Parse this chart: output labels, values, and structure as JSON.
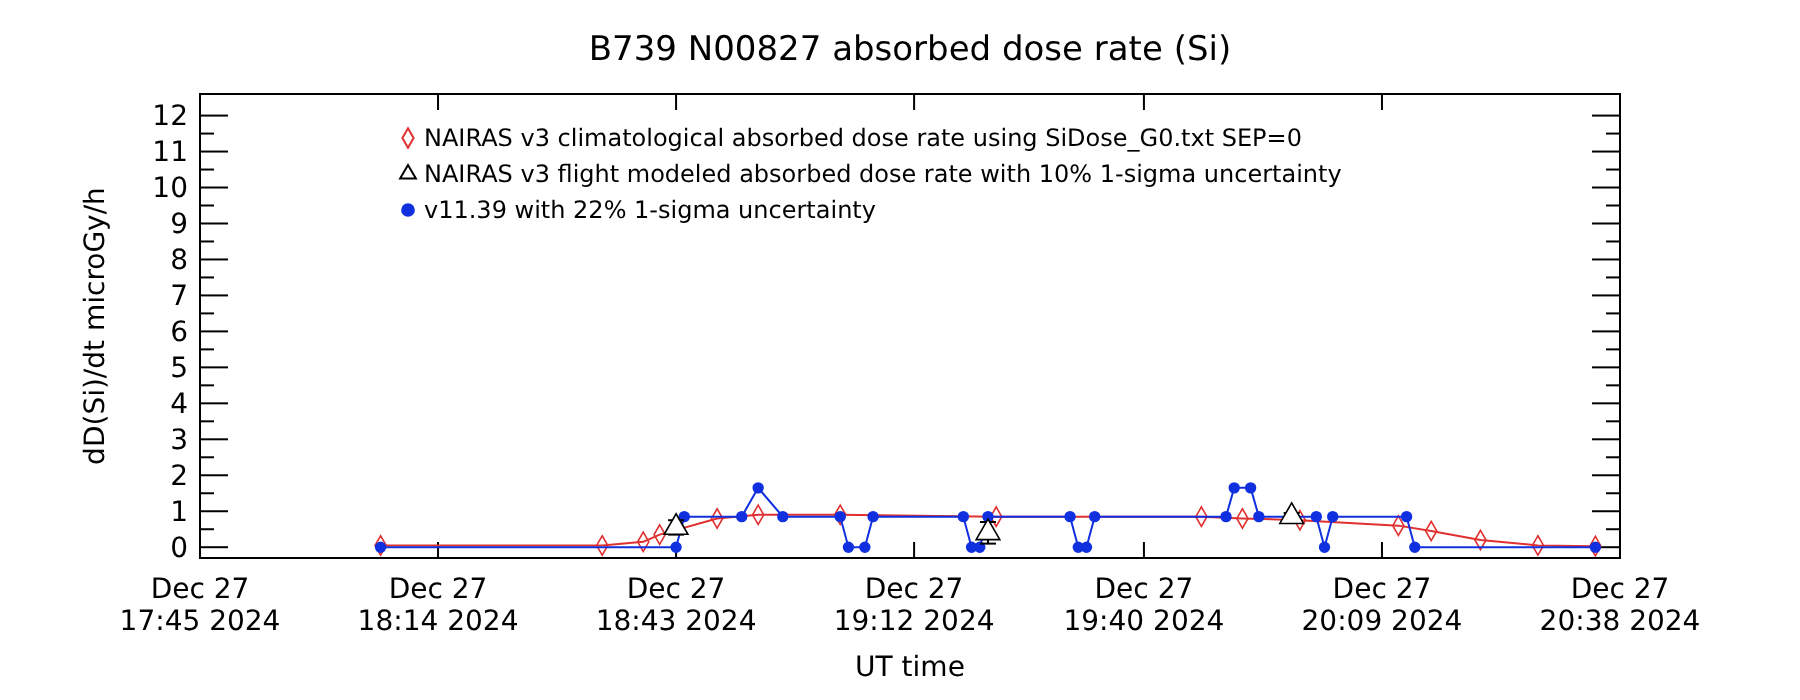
{
  "chart_data": {
    "type": "line",
    "title": "B739 N00827 absorbed dose rate (Si)",
    "xlabel": "UT time",
    "ylabel": "dD(Si)/dt microGy/h",
    "xlim": [
      "2024-12-27T17:45",
      "2024-12-27T20:38"
    ],
    "xticks": [
      {
        "value": "2024-12-27T17:45",
        "label": "Dec 27\n17:45 2024"
      },
      {
        "value": "2024-12-27T18:14",
        "label": "Dec 27\n18:14 2024"
      },
      {
        "value": "2024-12-27T18:43",
        "label": "Dec 27\n18:43 2024"
      },
      {
        "value": "2024-12-27T19:12",
        "label": "Dec 27\n19:12 2024"
      },
      {
        "value": "2024-12-27T19:40",
        "label": "Dec 27\n19:40 2024"
      },
      {
        "value": "2024-12-27T20:09",
        "label": "Dec 27\n20:09 2024"
      },
      {
        "value": "2024-12-27T20:38",
        "label": "Dec 27\n20:38 2024"
      }
    ],
    "ylim": [
      -0.3,
      12.6
    ],
    "yticks": [
      0,
      {
        "value": 0.5,
        "label": null
      },
      1,
      {
        "value": 1.5,
        "label": null
      },
      2,
      {
        "value": 2.5,
        "label": null
      },
      3,
      {
        "value": 3.5,
        "label": null
      },
      4,
      {
        "value": 4.5,
        "label": null
      },
      5,
      {
        "value": 5.5,
        "label": null
      },
      6,
      {
        "value": 6.5,
        "label": null
      },
      7,
      {
        "value": 7.5,
        "label": null
      },
      8,
      {
        "value": 8.5,
        "label": null
      },
      9,
      {
        "value": 9.5,
        "label": null
      },
      10,
      {
        "value": 10.5,
        "label": null
      },
      11,
      {
        "value": 11.5,
        "label": null
      },
      12
    ],
    "grid": false,
    "legend": "top",
    "line_style": "solid",
    "series": [
      {
        "name": "NAIRAS v3 climatological absorbed dose rate using SiDose_G0.txt SEP=0",
        "color": "#e03030",
        "marker": "diamond",
        "x": [
          "2024-12-27T18:07",
          "2024-12-27T18:34",
          "2024-12-27T18:39",
          "2024-12-27T18:41",
          "2024-12-27T18:48",
          "2024-12-27T18:53",
          "2024-12-27T19:03",
          "2024-12-27T19:22",
          "2024-12-27T19:47",
          "2024-12-27T19:52",
          "2024-12-27T19:59",
          "2024-12-27T20:11",
          "2024-12-27T20:15",
          "2024-12-27T20:21",
          "2024-12-27T20:28",
          "2024-12-27T20:35"
        ],
        "values": [
          0.05,
          0.05,
          0.15,
          0.35,
          0.8,
          0.9,
          0.9,
          0.85,
          0.85,
          0.8,
          0.75,
          0.6,
          0.45,
          0.2,
          0.05,
          0.03
        ]
      },
      {
        "name": "NAIRAS v3 flight modeled absorbed dose rate with 10% 1-sigma uncertainty",
        "color": "#000000",
        "type": "scatter",
        "marker": "triangle",
        "x": [
          "2024-12-27T18:43",
          "2024-12-27T19:21",
          "2024-12-27T19:58"
        ],
        "values": [
          0.55,
          0.4,
          0.85
        ],
        "errors": [
          0.2,
          0.3,
          0.1
        ]
      },
      {
        "name": "v11.39 with 22% 1-sigma uncertainty",
        "color": "#1030e0",
        "marker": "circle",
        "x": [
          "2024-12-27T18:07",
          "2024-12-27T18:43",
          "2024-12-27T18:44",
          "2024-12-27T18:51",
          "2024-12-27T18:53",
          "2024-12-27T18:56",
          "2024-12-27T19:03",
          "2024-12-27T19:04",
          "2024-12-27T19:06",
          "2024-12-27T19:07",
          "2024-12-27T19:18",
          "2024-12-27T19:19",
          "2024-12-27T19:20",
          "2024-12-27T19:21",
          "2024-12-27T19:31",
          "2024-12-27T19:32",
          "2024-12-27T19:33",
          "2024-12-27T19:34",
          "2024-12-27T19:50",
          "2024-12-27T19:51",
          "2024-12-27T19:53",
          "2024-12-27T19:54",
          "2024-12-27T20:01",
          "2024-12-27T20:02",
          "2024-12-27T20:03",
          "2024-12-27T20:12",
          "2024-12-27T20:13",
          "2024-12-27T20:35"
        ],
        "values": [
          0,
          0,
          0.85,
          0.85,
          1.65,
          0.85,
          0.85,
          0,
          0,
          0.85,
          0.85,
          0,
          0,
          0.85,
          0.85,
          0,
          0,
          0.85,
          0.85,
          1.65,
          1.65,
          0.85,
          0.85,
          0,
          0.85,
          0.85,
          0,
          0
        ]
      }
    ]
  }
}
